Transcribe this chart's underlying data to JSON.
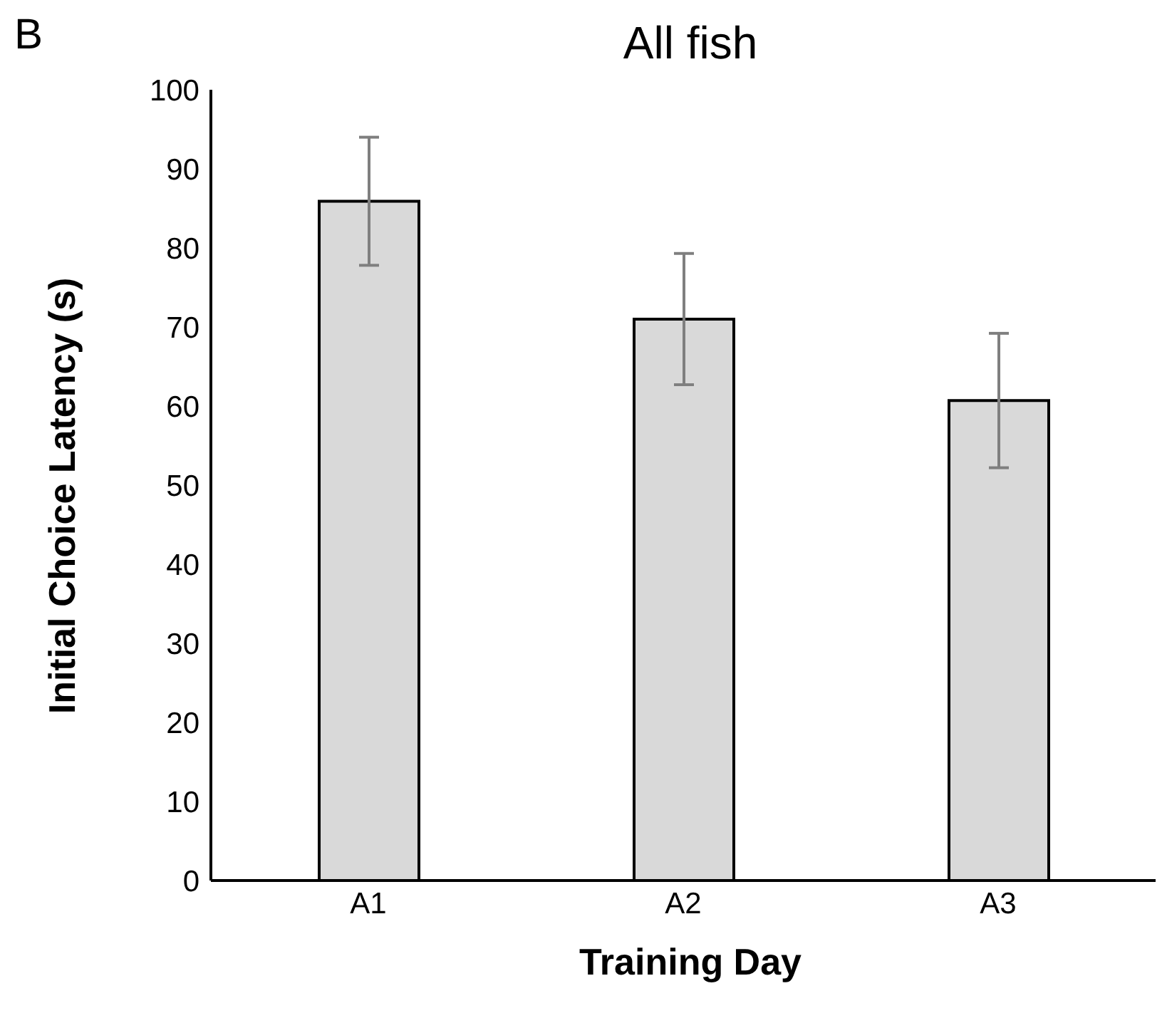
{
  "chart_data": {
    "type": "bar",
    "title": "All fish",
    "xlabel": "Training Day",
    "ylabel": "Initial Choice Latency (s)",
    "annotations": [
      "B"
    ],
    "categories": [
      "A1",
      "A2",
      "A3"
    ],
    "values": [
      85.9,
      71.0,
      60.7
    ],
    "errors": [
      8.1,
      8.3,
      8.5
    ],
    "color": "#d9d9d9",
    "ylim": [
      0,
      100
    ],
    "yticks": [
      0,
      10,
      20,
      30,
      40,
      50,
      60,
      70,
      80,
      90,
      100
    ],
    "grid": false,
    "legend": false
  }
}
